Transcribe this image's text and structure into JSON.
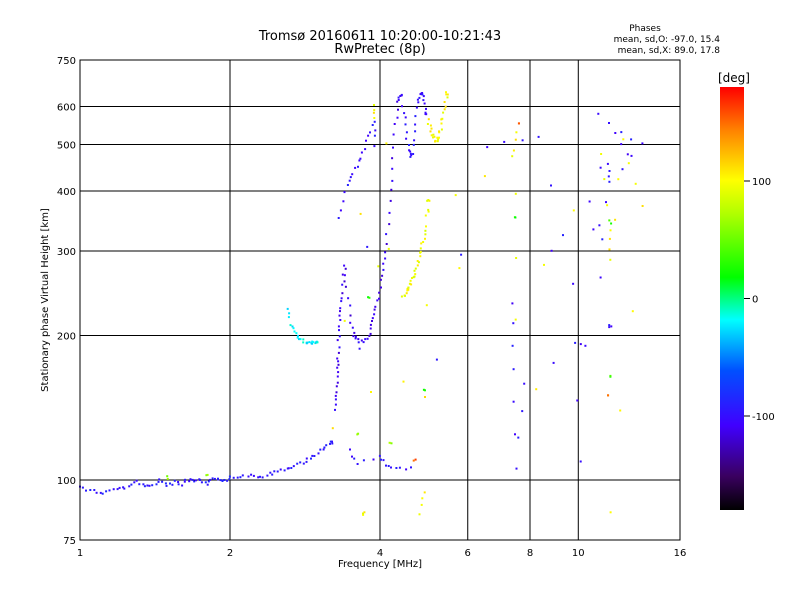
{
  "header": {
    "title_line1": "Tromsø 20160611 10:20:00-10:21:43",
    "title_line2": "RwPretec (8p)",
    "stats_title": "Phases",
    "stats_line1": "mean, sd,O:  -97.0, 15.4",
    "stats_line2": "mean, sd,X:   89.0, 17.8"
  },
  "chart_data": {
    "type": "scatter",
    "xlabel": "Frequency [MHz]",
    "ylabel": "Stationary phase Virtual Height [km]",
    "xscale": "log",
    "yscale": "log",
    "xlim": [
      1,
      16
    ],
    "ylim": [
      75,
      750
    ],
    "xticks": [
      "1",
      "2",
      "4",
      "6",
      "8",
      "10",
      "16"
    ],
    "xtick_values": [
      1,
      2,
      4,
      6,
      8,
      10,
      16
    ],
    "yticks": [
      "75",
      "100",
      "200",
      "300",
      "400",
      "500",
      "600",
      "750"
    ],
    "ytick_values": [
      75,
      100,
      200,
      300,
      400,
      500,
      600,
      750
    ],
    "grid": true,
    "colorbar": {
      "label": "[deg]",
      "range": [
        -180,
        180
      ],
      "ticks": [
        "100",
        "0",
        "-100"
      ],
      "tick_values": [
        100,
        0,
        -100
      ]
    },
    "traces": [
      {
        "phase": -95,
        "points": [
          [
            1.0,
            97
          ],
          [
            1.05,
            95
          ],
          [
            1.1,
            94
          ],
          [
            1.15,
            95
          ],
          [
            1.2,
            96
          ],
          [
            1.25,
            97
          ],
          [
            1.3,
            99
          ],
          [
            1.35,
            97
          ],
          [
            1.4,
            98
          ],
          [
            1.45,
            100
          ],
          [
            1.5,
            97
          ],
          [
            1.55,
            99
          ],
          [
            1.6,
            98
          ],
          [
            1.65,
            100
          ],
          [
            1.7,
            99
          ],
          [
            1.75,
            100
          ],
          [
            1.8,
            98
          ],
          [
            1.85,
            100
          ],
          [
            1.9,
            101
          ],
          [
            1.95,
            100
          ],
          [
            2.0,
            101
          ],
          [
            2.1,
            102
          ],
          [
            2.2,
            102
          ],
          [
            2.3,
            101
          ],
          [
            2.4,
            103
          ],
          [
            2.5,
            104
          ],
          [
            2.6,
            105
          ],
          [
            2.7,
            107
          ],
          [
            2.8,
            109
          ],
          [
            2.9,
            111
          ],
          [
            3.0,
            114
          ],
          [
            3.1,
            117
          ],
          [
            3.2,
            120
          ]
        ]
      },
      {
        "phase": -20,
        "points": [
          [
            2.6,
            227
          ],
          [
            2.65,
            212
          ],
          [
            2.7,
            203
          ],
          [
            2.75,
            198
          ],
          [
            2.8,
            195
          ],
          [
            2.85,
            194
          ],
          [
            2.9,
            193
          ],
          [
            2.95,
            193
          ],
          [
            3.0,
            193
          ]
        ]
      },
      {
        "phase": -110,
        "points": [
          [
            3.25,
            140
          ],
          [
            3.27,
            150
          ],
          [
            3.28,
            160
          ],
          [
            3.29,
            170
          ],
          [
            3.3,
            180
          ],
          [
            3.3,
            195
          ],
          [
            3.32,
            210
          ],
          [
            3.34,
            225
          ],
          [
            3.36,
            240
          ],
          [
            3.38,
            260
          ],
          [
            3.4,
            280
          ],
          [
            3.45,
            240
          ],
          [
            3.5,
            212
          ],
          [
            3.55,
            200
          ],
          [
            3.6,
            195
          ],
          [
            3.7,
            194
          ],
          [
            3.8,
            200
          ],
          [
            3.85,
            210
          ],
          [
            3.9,
            220
          ],
          [
            3.95,
            235
          ],
          [
            4.0,
            252
          ],
          [
            4.05,
            275
          ],
          [
            4.1,
            300
          ],
          [
            4.15,
            340
          ],
          [
            4.2,
            400
          ],
          [
            4.25,
            470
          ],
          [
            4.3,
            550
          ],
          [
            4.35,
            610
          ],
          [
            4.4,
            630
          ]
        ]
      },
      {
        "phase": -100,
        "points": [
          [
            4.45,
            600
          ],
          [
            4.5,
            550
          ],
          [
            4.55,
            500
          ],
          [
            4.6,
            470
          ],
          [
            4.65,
            480
          ],
          [
            4.7,
            530
          ],
          [
            4.75,
            600
          ],
          [
            4.8,
            630
          ],
          [
            4.85,
            640
          ],
          [
            4.9,
            620
          ],
          [
            4.95,
            580
          ]
        ]
      },
      {
        "phase": 95,
        "points": [
          [
            4.45,
            240
          ],
          [
            4.5,
            245
          ],
          [
            4.55,
            250
          ],
          [
            4.6,
            255
          ],
          [
            4.65,
            262
          ],
          [
            4.7,
            270
          ],
          [
            4.75,
            280
          ],
          [
            4.8,
            292
          ],
          [
            4.85,
            305
          ],
          [
            4.9,
            320
          ],
          [
            4.95,
            340
          ],
          [
            5.0,
            380
          ]
        ]
      },
      {
        "phase": 100,
        "points": [
          [
            5.0,
            560
          ],
          [
            5.05,
            540
          ],
          [
            5.1,
            520
          ],
          [
            5.15,
            510
          ],
          [
            5.2,
            512
          ],
          [
            5.25,
            520
          ],
          [
            5.3,
            540
          ],
          [
            5.35,
            570
          ],
          [
            5.4,
            600
          ],
          [
            5.45,
            640
          ]
        ]
      },
      {
        "phase": -100,
        "points": [
          [
            3.3,
            350
          ],
          [
            3.4,
            400
          ],
          [
            3.5,
            430
          ],
          [
            3.6,
            450
          ],
          [
            3.7,
            480
          ],
          [
            3.8,
            520
          ],
          [
            3.9,
            560
          ],
          [
            3.9,
            500
          ],
          [
            3.5,
            115
          ],
          [
            3.6,
            108
          ],
          [
            4.0,
            112
          ],
          [
            4.1,
            108
          ],
          [
            4.3,
            106
          ],
          [
            4.6,
            106
          ],
          [
            6.6,
            495
          ],
          [
            8.3,
            520
          ],
          [
            9.8,
            257
          ],
          [
            10.1,
            110
          ],
          [
            11.0,
            580
          ],
          [
            11.1,
            262
          ],
          [
            11.5,
            455
          ],
          [
            11.6,
            415
          ],
          [
            13.5,
            500
          ],
          [
            11.5,
            550
          ],
          [
            12.5,
            480
          ],
          [
            7.4,
            235
          ],
          [
            7.4,
            170
          ],
          [
            7.5,
            106
          ],
          [
            7.8,
            160
          ],
          [
            11.6,
            210
          ]
        ]
      },
      {
        "phase": 100,
        "points": [
          [
            3.2,
            128
          ],
          [
            3.9,
            600
          ],
          [
            3.9,
            570
          ],
          [
            4.8,
            85
          ],
          [
            4.9,
            95
          ],
          [
            5.0,
            360
          ],
          [
            7.4,
            470
          ],
          [
            7.5,
            530
          ],
          [
            7.5,
            215
          ],
          [
            11.1,
            480
          ],
          [
            11.6,
            330
          ],
          [
            11.6,
            290
          ],
          [
            12.3,
            510
          ],
          [
            13.5,
            370
          ],
          [
            11.6,
            85
          ],
          [
            4.1,
            500
          ],
          [
            3.7,
            85
          ]
        ]
      },
      {
        "phase": 150,
        "points": [
          [
            7.6,
            550
          ],
          [
            11.5,
            150
          ],
          [
            4.7,
            110
          ]
        ]
      },
      {
        "phase": 30,
        "points": [
          [
            7.5,
            350
          ],
          [
            11.6,
            345
          ],
          [
            11.6,
            165
          ],
          [
            4.9,
            155
          ],
          [
            3.8,
            240
          ]
        ]
      },
      {
        "phase": 60,
        "points": [
          [
            4.2,
            120
          ],
          [
            3.6,
            125
          ],
          [
            1.5,
            101
          ],
          [
            1.8,
            103
          ]
        ]
      }
    ]
  }
}
